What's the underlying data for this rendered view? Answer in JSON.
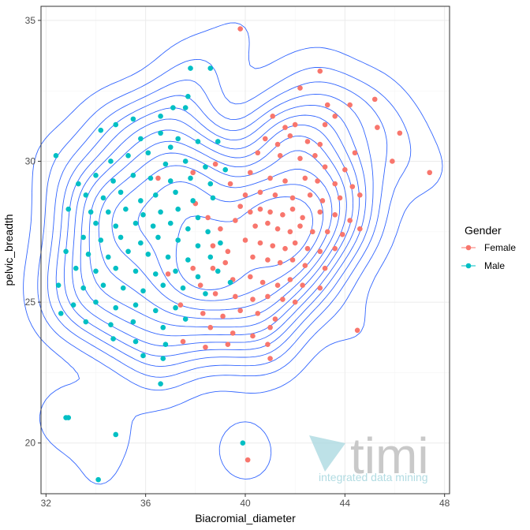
{
  "chart_data": {
    "type": "scatter",
    "xlabel": "Biacromial_diameter",
    "ylabel": "pelvic_breadth",
    "xlim": [
      31.8,
      48.2
    ],
    "ylim": [
      18.2,
      35.5
    ],
    "x_ticks": [
      32,
      36,
      40,
      44,
      48
    ],
    "y_ticks": [
      20,
      25,
      30,
      35
    ],
    "grid": true,
    "legend": {
      "title": "Gender",
      "position": "right"
    },
    "overlay": "2D density contour lines (blue)",
    "series": [
      {
        "name": "Female",
        "color": "#F8766D",
        "points": [
          [
            39.8,
            34.7
          ],
          [
            43.0,
            33.2
          ],
          [
            42.2,
            32.6
          ],
          [
            43.3,
            32.0
          ],
          [
            44.2,
            32.0
          ],
          [
            45.2,
            32.2
          ],
          [
            45.3,
            31.2
          ],
          [
            46.2,
            31.0
          ],
          [
            45.9,
            30.0
          ],
          [
            47.4,
            29.6
          ],
          [
            41.1,
            31.6
          ],
          [
            41.6,
            31.2
          ],
          [
            42.0,
            31.3
          ],
          [
            40.8,
            30.8
          ],
          [
            41.3,
            30.6
          ],
          [
            41.8,
            30.9
          ],
          [
            42.5,
            30.7
          ],
          [
            43.2,
            31.3
          ],
          [
            43.6,
            31.6
          ],
          [
            43.0,
            30.6
          ],
          [
            42.2,
            30.1
          ],
          [
            40.5,
            30.3
          ],
          [
            41.4,
            30.2
          ],
          [
            42.8,
            30.2
          ],
          [
            43.2,
            29.8
          ],
          [
            44.4,
            30.3
          ],
          [
            44.0,
            29.7
          ],
          [
            40.2,
            29.6
          ],
          [
            41.0,
            29.4
          ],
          [
            41.6,
            29.3
          ],
          [
            42.4,
            29.4
          ],
          [
            42.9,
            29.3
          ],
          [
            43.6,
            29.2
          ],
          [
            44.3,
            29.1
          ],
          [
            39.4,
            29.2
          ],
          [
            40.0,
            28.8
          ],
          [
            40.6,
            28.9
          ],
          [
            41.2,
            28.8
          ],
          [
            41.9,
            28.7
          ],
          [
            42.6,
            28.8
          ],
          [
            43.1,
            28.6
          ],
          [
            43.8,
            28.7
          ],
          [
            44.6,
            28.8
          ],
          [
            39.8,
            28.4
          ],
          [
            40.2,
            28.2
          ],
          [
            40.6,
            28.3
          ],
          [
            41.0,
            28.2
          ],
          [
            41.5,
            28.1
          ],
          [
            41.9,
            28.3
          ],
          [
            42.3,
            28.0
          ],
          [
            43.0,
            28.2
          ],
          [
            43.6,
            28.1
          ],
          [
            44.2,
            27.9
          ],
          [
            39.6,
            27.9
          ],
          [
            40.4,
            27.7
          ],
          [
            40.9,
            27.8
          ],
          [
            41.3,
            27.6
          ],
          [
            41.8,
            27.5
          ],
          [
            42.2,
            27.7
          ],
          [
            42.7,
            27.5
          ],
          [
            43.3,
            27.5
          ],
          [
            43.9,
            27.4
          ],
          [
            44.6,
            27.6
          ],
          [
            40.0,
            27.2
          ],
          [
            40.6,
            27.1
          ],
          [
            41.1,
            27.0
          ],
          [
            41.6,
            26.9
          ],
          [
            42.0,
            27.1
          ],
          [
            42.5,
            26.9
          ],
          [
            43.0,
            26.8
          ],
          [
            43.6,
            26.9
          ],
          [
            40.3,
            26.6
          ],
          [
            40.9,
            26.5
          ],
          [
            41.4,
            26.4
          ],
          [
            41.9,
            26.5
          ],
          [
            42.4,
            26.3
          ],
          [
            43.2,
            26.2
          ],
          [
            39.2,
            26.4
          ],
          [
            38.7,
            26.2
          ],
          [
            39.5,
            25.8
          ],
          [
            40.2,
            25.9
          ],
          [
            40.7,
            25.7
          ],
          [
            41.3,
            25.6
          ],
          [
            41.8,
            25.8
          ],
          [
            42.3,
            25.6
          ],
          [
            43.0,
            25.5
          ],
          [
            38.2,
            25.6
          ],
          [
            38.8,
            25.3
          ],
          [
            39.6,
            25.2
          ],
          [
            40.3,
            25.1
          ],
          [
            40.9,
            25.2
          ],
          [
            41.5,
            25.1
          ],
          [
            42.0,
            25.0
          ],
          [
            37.4,
            24.9
          ],
          [
            38.3,
            24.6
          ],
          [
            39.1,
            24.5
          ],
          [
            39.8,
            24.7
          ],
          [
            40.5,
            24.6
          ],
          [
            41.2,
            24.4
          ],
          [
            38.6,
            24.1
          ],
          [
            39.5,
            23.9
          ],
          [
            40.3,
            23.8
          ],
          [
            41.0,
            24.1
          ],
          [
            37.5,
            23.6
          ],
          [
            38.4,
            23.4
          ],
          [
            39.3,
            23.5
          ],
          [
            40.9,
            23.5
          ],
          [
            44.5,
            24.0
          ],
          [
            41.0,
            23.0
          ],
          [
            40.1,
            19.4
          ],
          [
            38.0,
            28.5
          ],
          [
            38.5,
            28.0
          ],
          [
            39.0,
            27.6
          ],
          [
            38.7,
            27.0
          ],
          [
            39.3,
            26.8
          ],
          [
            37.9,
            26.2
          ],
          [
            36.9,
            26.0
          ],
          [
            36.5,
            29.4
          ],
          [
            37.9,
            29.6
          ],
          [
            38.8,
            29.9
          ]
        ]
      },
      {
        "name": "Male",
        "color": "#00BFC4",
        "points": [
          [
            32.4,
            30.2
          ],
          [
            37.8,
            33.3
          ],
          [
            38.6,
            33.3
          ],
          [
            37.7,
            32.3
          ],
          [
            37.1,
            31.9
          ],
          [
            37.6,
            31.9
          ],
          [
            36.6,
            31.6
          ],
          [
            35.5,
            31.5
          ],
          [
            34.8,
            31.3
          ],
          [
            34.2,
            31.1
          ],
          [
            35.8,
            30.8
          ],
          [
            36.6,
            31.0
          ],
          [
            37.3,
            30.8
          ],
          [
            38.1,
            30.7
          ],
          [
            38.9,
            30.7
          ],
          [
            37.0,
            30.5
          ],
          [
            36.1,
            30.3
          ],
          [
            35.3,
            30.2
          ],
          [
            34.6,
            30.0
          ],
          [
            36.8,
            29.9
          ],
          [
            37.6,
            30.0
          ],
          [
            38.4,
            29.8
          ],
          [
            39.2,
            29.7
          ],
          [
            33.3,
            29.2
          ],
          [
            34.0,
            29.5
          ],
          [
            34.7,
            29.3
          ],
          [
            35.5,
            29.5
          ],
          [
            36.2,
            29.4
          ],
          [
            37.0,
            29.3
          ],
          [
            37.8,
            29.4
          ],
          [
            38.6,
            29.2
          ],
          [
            33.6,
            28.8
          ],
          [
            34.3,
            28.7
          ],
          [
            35.0,
            28.9
          ],
          [
            35.8,
            28.6
          ],
          [
            36.4,
            28.8
          ],
          [
            37.2,
            28.9
          ],
          [
            37.9,
            28.6
          ],
          [
            38.7,
            28.7
          ],
          [
            32.9,
            28.3
          ],
          [
            33.8,
            28.2
          ],
          [
            34.5,
            28.2
          ],
          [
            35.2,
            28.3
          ],
          [
            35.9,
            28.1
          ],
          [
            36.6,
            28.2
          ],
          [
            37.3,
            28.3
          ],
          [
            38.1,
            28.0
          ],
          [
            34.0,
            27.8
          ],
          [
            34.8,
            27.7
          ],
          [
            35.6,
            27.8
          ],
          [
            36.3,
            27.7
          ],
          [
            37.0,
            27.8
          ],
          [
            37.7,
            27.6
          ],
          [
            38.5,
            27.5
          ],
          [
            33.5,
            27.3
          ],
          [
            34.2,
            27.2
          ],
          [
            35.0,
            27.3
          ],
          [
            35.8,
            27.1
          ],
          [
            36.5,
            27.3
          ],
          [
            37.3,
            27.2
          ],
          [
            38.1,
            27.0
          ],
          [
            39.0,
            27.1
          ],
          [
            32.8,
            26.8
          ],
          [
            33.7,
            26.7
          ],
          [
            34.5,
            26.6
          ],
          [
            35.3,
            26.8
          ],
          [
            36.1,
            26.7
          ],
          [
            36.9,
            26.6
          ],
          [
            37.7,
            26.5
          ],
          [
            38.6,
            26.6
          ],
          [
            33.2,
            26.2
          ],
          [
            34.0,
            26.1
          ],
          [
            34.8,
            26.2
          ],
          [
            35.6,
            26.1
          ],
          [
            36.4,
            26.0
          ],
          [
            37.2,
            26.1
          ],
          [
            38.1,
            25.9
          ],
          [
            32.5,
            25.6
          ],
          [
            33.5,
            25.5
          ],
          [
            34.3,
            25.6
          ],
          [
            35.1,
            25.5
          ],
          [
            35.9,
            25.4
          ],
          [
            36.7,
            25.6
          ],
          [
            37.5,
            25.5
          ],
          [
            38.4,
            25.3
          ],
          [
            33.1,
            24.9
          ],
          [
            34.0,
            25.0
          ],
          [
            34.8,
            24.8
          ],
          [
            35.6,
            24.9
          ],
          [
            36.4,
            24.7
          ],
          [
            37.2,
            24.8
          ],
          [
            32.6,
            24.6
          ],
          [
            33.6,
            24.3
          ],
          [
            34.6,
            24.2
          ],
          [
            35.5,
            24.3
          ],
          [
            36.7,
            24.1
          ],
          [
            37.6,
            24.4
          ],
          [
            34.7,
            23.7
          ],
          [
            35.6,
            23.6
          ],
          [
            36.8,
            23.5
          ],
          [
            35.9,
            23.1
          ],
          [
            36.7,
            23.0
          ],
          [
            36.6,
            22.1
          ],
          [
            32.8,
            20.9
          ],
          [
            32.9,
            20.9
          ],
          [
            34.8,
            20.3
          ],
          [
            39.9,
            20.0
          ],
          [
            34.1,
            18.7
          ],
          [
            38.9,
            26.1
          ],
          [
            39.4,
            25.7
          ]
        ]
      }
    ]
  },
  "watermark": {
    "logo_text": "timi",
    "tagline": "integrated data mining"
  },
  "colors": {
    "panel_border": "#333333",
    "grid_major": "#ebebeb",
    "grid_minor": "#f5f5f5",
    "contour": "#3366FF"
  }
}
